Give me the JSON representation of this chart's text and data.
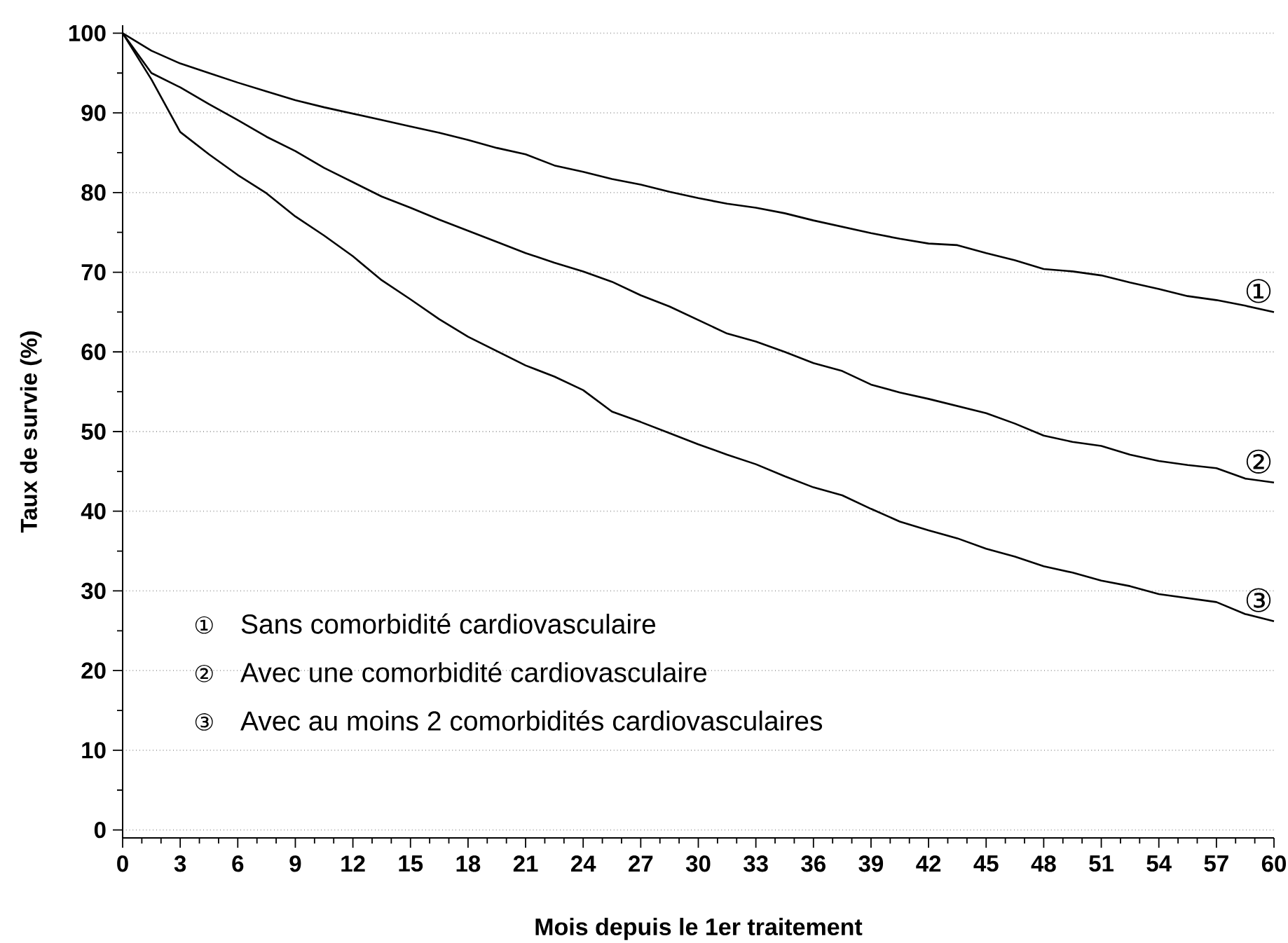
{
  "chart_data": {
    "type": "line",
    "xlabel": "Mois depuis le 1er traitement",
    "ylabel": "Taux de survie (%)",
    "annotations": [
      "① Sans comorbidité cardiovasculaire",
      "② Avec une comorbidité cardiovasculaire",
      "③ Avec au moins 2 comorbidités cardiovasculaires"
    ],
    "x": [
      0,
      1.5,
      3,
      4.5,
      6,
      7.5,
      9,
      10.5,
      12,
      13.5,
      15,
      16.5,
      18,
      19.5,
      21,
      22.5,
      24,
      25.5,
      27,
      28.5,
      30,
      31.5,
      33,
      34.5,
      36,
      37.5,
      39,
      40.5,
      42,
      43.5,
      45,
      46.5,
      48,
      49.5,
      51,
      52.5,
      54,
      55.5,
      57,
      58.5,
      60
    ],
    "series": [
      {
        "name": "①",
        "color": "#000000",
        "values": [
          100,
          97.8,
          96.2,
          95.0,
          93.8,
          92.7,
          91.6,
          90.7,
          89.9,
          89.1,
          88.3,
          87.5,
          86.6,
          85.6,
          84.8,
          83.4,
          82.6,
          81.7,
          81.0,
          80.1,
          79.3,
          78.6,
          78.1,
          77.4,
          76.5,
          75.7,
          74.9,
          74.2,
          73.6,
          73.4,
          72.4,
          71.5,
          70.4,
          70.1,
          69.6,
          68.7,
          67.9,
          67.0,
          66.5,
          65.8,
          65.0
        ]
      },
      {
        "name": "②",
        "color": "#000000",
        "values": [
          100,
          95.0,
          93.2,
          91.1,
          89.1,
          87.0,
          85.2,
          83.1,
          81.3,
          79.5,
          78.1,
          76.6,
          75.2,
          73.8,
          72.4,
          71.2,
          70.1,
          68.8,
          67.1,
          65.7,
          64.0,
          62.3,
          61.3,
          60.0,
          58.6,
          57.6,
          55.9,
          54.9,
          54.1,
          53.2,
          52.3,
          51.0,
          49.5,
          48.7,
          48.2,
          47.1,
          46.3,
          45.8,
          45.4,
          44.1,
          43.6
        ]
      },
      {
        "name": "③",
        "color": "#000000",
        "values": [
          100,
          94.2,
          87.6,
          84.8,
          82.2,
          79.9,
          77.0,
          74.6,
          72.0,
          69.0,
          66.6,
          64.1,
          61.9,
          60.1,
          58.3,
          56.9,
          55.2,
          52.5,
          51.2,
          49.8,
          48.4,
          47.1,
          45.9,
          44.4,
          43.0,
          42.0,
          40.3,
          38.7,
          37.6,
          36.6,
          35.3,
          34.3,
          33.1,
          32.3,
          31.3,
          30.6,
          29.6,
          29.1,
          28.6,
          27.1,
          26.2
        ]
      }
    ],
    "xlim": [
      0,
      60
    ],
    "ylim": [
      -1,
      101
    ],
    "xticks": [
      0,
      3,
      6,
      9,
      12,
      15,
      18,
      21,
      24,
      27,
      30,
      33,
      36,
      39,
      42,
      45,
      48,
      51,
      54,
      57,
      60
    ],
    "yticks": [
      0,
      10,
      20,
      30,
      40,
      50,
      60,
      70,
      80,
      90,
      100
    ],
    "grid": "y"
  }
}
